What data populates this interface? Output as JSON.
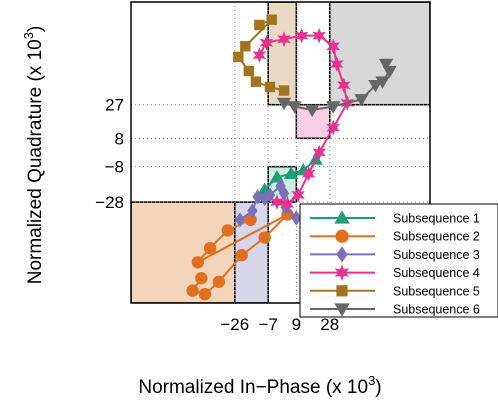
{
  "chart_data": {
    "type": "line",
    "title": "",
    "xlabel": "Normalized In−Phase (x 10",
    "xlabel_exp": "3",
    "xlabel_close": ")",
    "ylabel": "Normalized Quadrature (x 10",
    "ylabel_exp": "3",
    "ylabel_close": ")",
    "xlim": [
      -85,
      85
    ],
    "ylim": [
      -85,
      85
    ],
    "x_ticks": [
      {
        "value": -26,
        "label": "−26"
      },
      {
        "value": -7,
        "label": "−7"
      },
      {
        "value": 9,
        "label": "9"
      },
      {
        "value": 28,
        "label": "28"
      }
    ],
    "y_ticks": [
      {
        "value": 27,
        "label": "27"
      },
      {
        "value": 8,
        "label": "8"
      },
      {
        "value": -8,
        "label": "−8"
      },
      {
        "value": -28,
        "label": "−28"
      }
    ],
    "grid": "dotted at tick values",
    "legend_position": "bottom-right",
    "regions": [
      {
        "x": [
          -85,
          -26
        ],
        "y": [
          -85,
          -28
        ],
        "color": "#f3d5bb"
      },
      {
        "x": [
          -26,
          -7
        ],
        "y": [
          -85,
          -28
        ],
        "color": "#d8d6ea"
      },
      {
        "x": [
          -7,
          9
        ],
        "y": [
          -28,
          -8
        ],
        "color": "#cdebe1"
      },
      {
        "x": [
          9,
          28
        ],
        "y": [
          8,
          27
        ],
        "color": "#f9cde3"
      },
      {
        "x": [
          -7,
          9
        ],
        "y": [
          27,
          85
        ],
        "color": "#ead9c4"
      },
      {
        "x": [
          28,
          85
        ],
        "y": [
          27,
          85
        ],
        "color": "#d8d8d8"
      }
    ],
    "series": [
      {
        "name": "Subsequence 1",
        "color": "#1e9d76",
        "marker": "triangle-up",
        "points": [
          [
            -9,
            -21
          ],
          [
            -2,
            -14
          ],
          [
            6,
            -12
          ],
          [
            13,
            -10
          ],
          [
            20,
            -4
          ]
        ]
      },
      {
        "name": "Subsequence 2",
        "color": "#e0701f",
        "marker": "circle",
        "points": [
          [
            -45,
            -71
          ],
          [
            -50,
            -78
          ],
          [
            -43,
            -80
          ],
          [
            -35,
            -73
          ],
          [
            -22,
            -58
          ],
          [
            -9,
            -48
          ],
          [
            4,
            -35
          ],
          [
            -47,
            -62
          ],
          [
            -40,
            -54
          ],
          [
            -30,
            -44
          ],
          [
            -17,
            -38
          ]
        ]
      },
      {
        "name": "Subsequence 3",
        "color": "#7a70b8",
        "marker": "diamond",
        "points": [
          [
            -23,
            -38
          ],
          [
            -16,
            -33
          ],
          [
            -13,
            -25
          ],
          [
            -9,
            -26
          ],
          [
            -6,
            -24
          ],
          [
            0,
            -19
          ],
          [
            2,
            -23
          ],
          [
            3,
            -31
          ],
          [
            9,
            -37
          ]
        ]
      },
      {
        "name": "Subsequence 4",
        "color": "#e6318f",
        "marker": "star",
        "points": [
          [
            -2,
            -28
          ],
          [
            4,
            -29
          ],
          [
            10,
            -24
          ],
          [
            16,
            -12
          ],
          [
            22,
            0
          ],
          [
            30,
            14
          ],
          [
            38,
            28
          ],
          [
            36,
            38
          ],
          [
            32,
            50
          ],
          [
            30,
            60
          ],
          [
            22,
            66
          ],
          [
            12,
            66
          ],
          [
            2,
            64
          ],
          [
            -8,
            62
          ],
          [
            -12,
            55
          ]
        ]
      },
      {
        "name": "Subsequence 5",
        "color": "#a3731f",
        "marker": "square",
        "points": [
          [
            -12,
            72
          ],
          [
            -5,
            75
          ],
          [
            -20,
            60
          ],
          [
            -24,
            54
          ],
          [
            -18,
            46
          ],
          [
            -14,
            40
          ],
          [
            -6,
            37
          ],
          [
            2,
            35
          ]
        ]
      },
      {
        "name": "Subsequence 6",
        "color": "#666666",
        "marker": "triangle-down",
        "points": [
          [
            60,
            50
          ],
          [
            62,
            46
          ],
          [
            58,
            40
          ],
          [
            54,
            38
          ],
          [
            46,
            30
          ],
          [
            30,
            26
          ],
          [
            18,
            24
          ],
          [
            8,
            26
          ],
          [
            2,
            28
          ]
        ]
      }
    ]
  }
}
